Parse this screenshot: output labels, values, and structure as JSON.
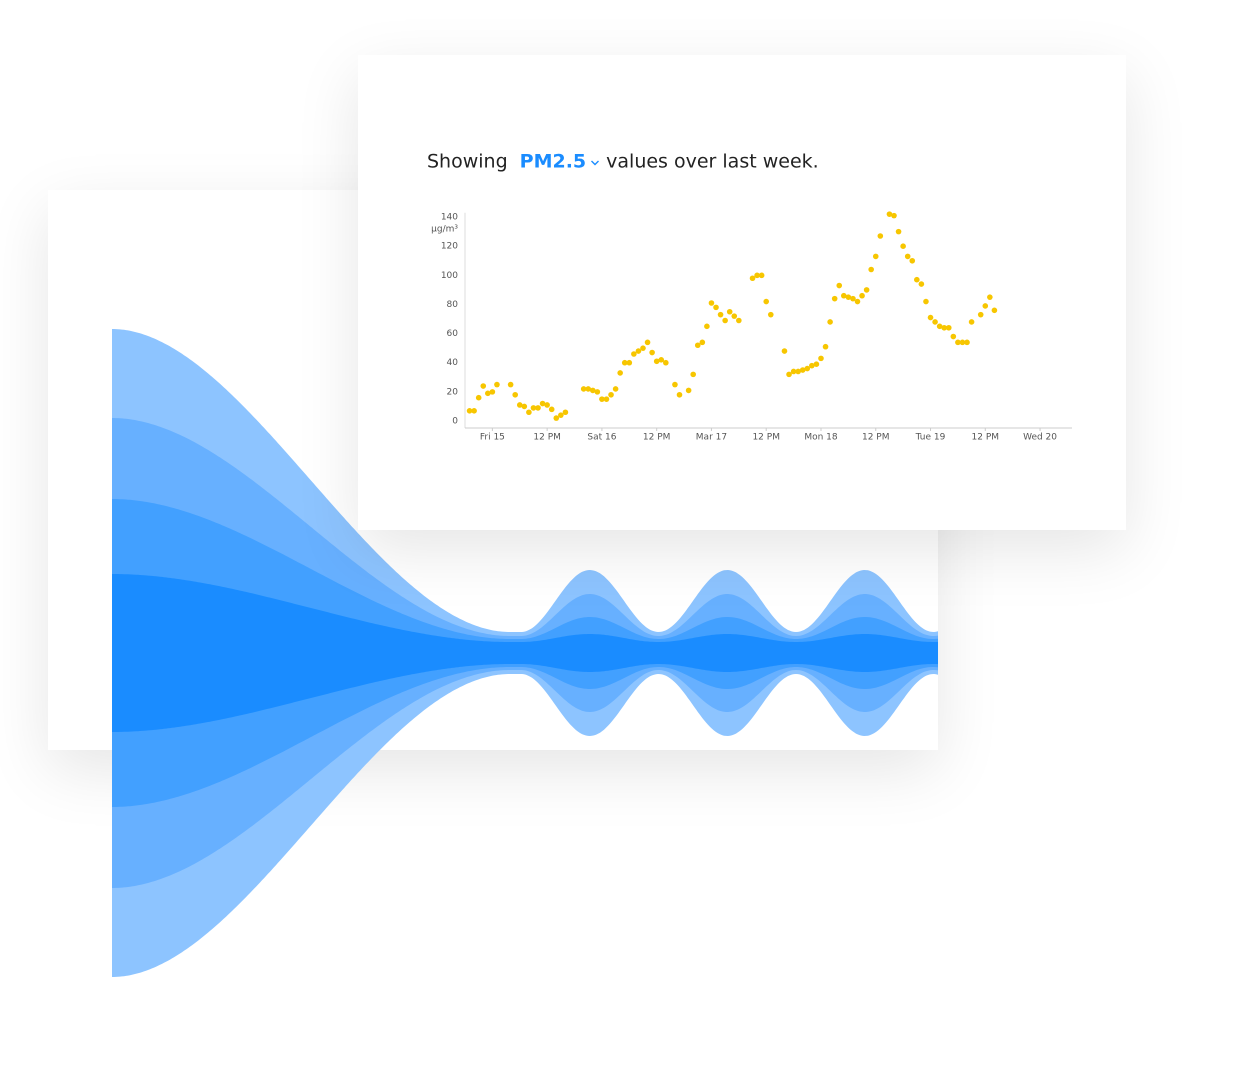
{
  "heading": {
    "prefix": "Showing",
    "selector": "PM2.5",
    "suffix": "values over last week."
  },
  "chart_data": {
    "type": "scatter",
    "y_label": "µg/m³",
    "color": "#f7c600",
    "x": [
      -5,
      -4,
      -3,
      -2,
      -1,
      0,
      1,
      4,
      5,
      6,
      7,
      8,
      9,
      10,
      11,
      12,
      13,
      14,
      15,
      16,
      20,
      21,
      22,
      23,
      24,
      25,
      26,
      27,
      28,
      29,
      30,
      31,
      32,
      33,
      34,
      35,
      36,
      37,
      38,
      40,
      41,
      43,
      44,
      45,
      46,
      47,
      48,
      49,
      50,
      51,
      52,
      53,
      54,
      57,
      58,
      59,
      60,
      61,
      64,
      65,
      66,
      67,
      68,
      69,
      70,
      71,
      72,
      73,
      74,
      75,
      76,
      77,
      78,
      79,
      80,
      81,
      82,
      83,
      84,
      85,
      87,
      88,
      89,
      90,
      91,
      92,
      93,
      94,
      95,
      96,
      97,
      98,
      99,
      100,
      101,
      102,
      103,
      104,
      105,
      107,
      108,
      109,
      110
    ],
    "values": [
      7,
      7,
      16,
      24,
      19,
      20,
      25,
      25,
      18,
      11,
      10,
      6,
      9,
      9,
      12,
      11,
      8,
      2,
      4,
      6,
      22,
      22,
      21,
      20,
      15,
      15,
      18,
      22,
      33,
      40,
      40,
      46,
      48,
      50,
      54,
      47,
      41,
      42,
      40,
      25,
      18,
      21,
      32,
      52,
      54,
      65,
      81,
      78,
      73,
      69,
      75,
      72,
      69,
      98,
      100,
      100,
      82,
      73,
      48,
      32,
      34,
      34,
      35,
      36,
      38,
      39,
      43,
      51,
      68,
      84,
      93,
      86,
      85,
      84,
      82,
      86,
      90,
      104,
      113,
      127,
      142,
      141,
      130,
      120,
      113,
      110,
      97,
      94,
      82,
      71,
      68,
      65,
      64,
      64,
      58,
      54,
      54,
      54,
      68,
      73,
      79,
      85,
      76
    ],
    "xlim": [
      -6,
      127
    ],
    "xticks": [
      {
        "value": 0,
        "label": "Fri 15"
      },
      {
        "value": 12,
        "label": "12 PM"
      },
      {
        "value": 24,
        "label": "Sat 16"
      },
      {
        "value": 36,
        "label": "12 PM"
      },
      {
        "value": 48,
        "label": "Mar 17"
      },
      {
        "value": 60,
        "label": "12 PM"
      },
      {
        "value": 72,
        "label": "Mon 18"
      },
      {
        "value": 84,
        "label": "12 PM"
      },
      {
        "value": 96,
        "label": "Tue 19"
      },
      {
        "value": 108,
        "label": "12 PM"
      },
      {
        "value": 120,
        "label": "Wed 20"
      }
    ],
    "ylim": [
      0,
      143
    ],
    "yticks": [
      0,
      20,
      40,
      60,
      80,
      100,
      120,
      140
    ]
  }
}
